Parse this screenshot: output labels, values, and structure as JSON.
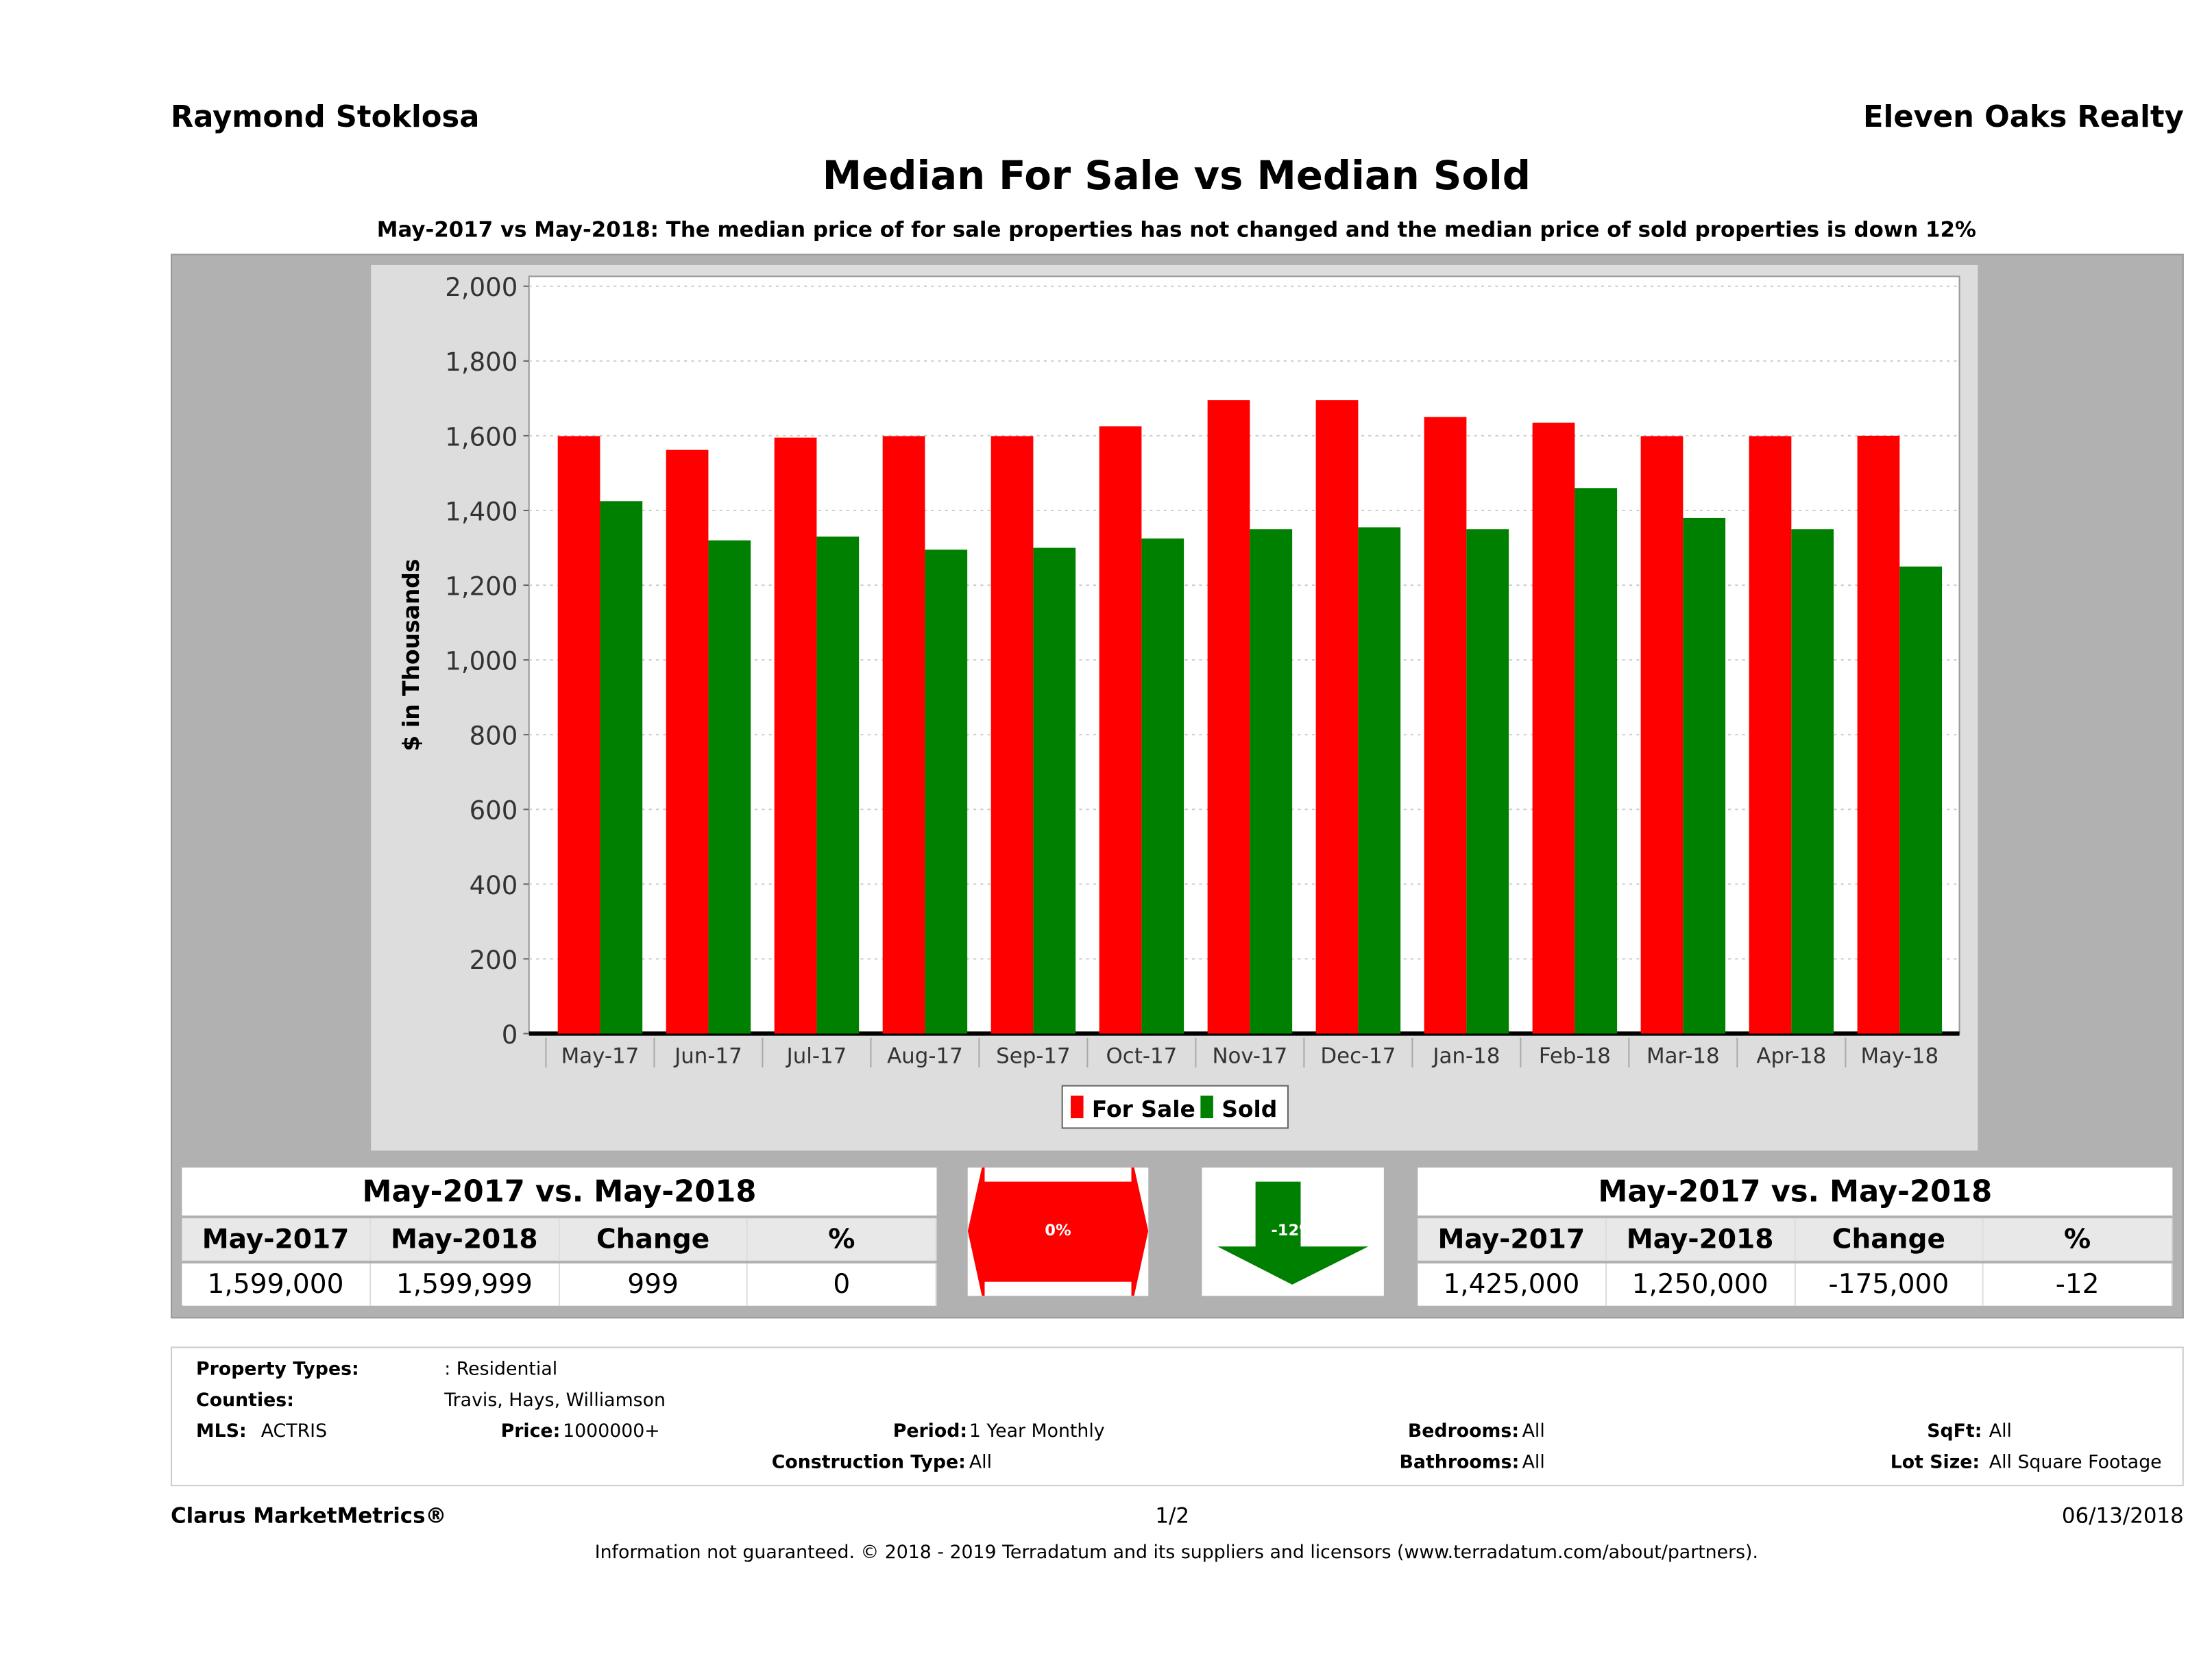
{
  "header": {
    "agent": "Raymond Stoklosa",
    "brokerage": "Eleven Oaks Realty"
  },
  "title": "Median For Sale vs Median Sold",
  "subtitle": "May-2017 vs May-2018: The median price of for sale properties has not changed and the median price of sold properties is down 12%",
  "chart_data": {
    "type": "bar",
    "title": "Median For Sale vs Median Sold",
    "xlabel": "",
    "ylabel": "$ in Thousands",
    "ylim": [
      0,
      2000
    ],
    "yticks": [
      "0",
      "200",
      "400",
      "600",
      "800",
      "1,000",
      "1,200",
      "1,400",
      "1,600",
      "1,800",
      "2,000"
    ],
    "ytick_values": [
      0,
      200,
      400,
      600,
      800,
      1000,
      1200,
      1400,
      1600,
      1800,
      2000
    ],
    "grid": true,
    "legend": "bottom-center",
    "categories": [
      "May-17",
      "Jun-17",
      "Jul-17",
      "Aug-17",
      "Sep-17",
      "Oct-17",
      "Nov-17",
      "Dec-17",
      "Jan-18",
      "Feb-18",
      "Mar-18",
      "Apr-18",
      "May-18"
    ],
    "series": [
      {
        "name": "For Sale",
        "color": "#ff0000",
        "values": [
          1599,
          1562,
          1595,
          1599,
          1599,
          1625,
          1695,
          1695,
          1650,
          1635,
          1599,
          1599,
          1600
        ]
      },
      {
        "name": "Sold",
        "color": "#008000",
        "values": [
          1425,
          1320,
          1330,
          1295,
          1300,
          1325,
          1350,
          1355,
          1350,
          1460,
          1380,
          1350,
          1250
        ]
      }
    ]
  },
  "forsale_table": {
    "caption": "May-2017 vs. May-2018",
    "headers": [
      "May-2017",
      "May-2018",
      "Change",
      "%"
    ],
    "values": [
      "1,599,000",
      "1,599,999",
      "999",
      "0"
    ]
  },
  "forsale_indicator": {
    "label": "0%",
    "color": "#ff0000"
  },
  "sold_indicator": {
    "label": "-12%",
    "color": "#008000"
  },
  "sold_table": {
    "caption": "May-2017 vs. May-2018",
    "headers": [
      "May-2017",
      "May-2018",
      "Change",
      "%"
    ],
    "values": [
      "1,425,000",
      "1,250,000",
      "-175,000",
      "-12"
    ]
  },
  "filters": {
    "property_types_label": "Property Types:",
    "property_types": ": Residential",
    "counties_label": "Counties:",
    "counties": "Travis, Hays, Williamson",
    "mls_label": "MLS:",
    "mls": "ACTRIS",
    "price_label": "Price:",
    "price": "1000000+",
    "period_label": "Period:",
    "period": "1 Year Monthly",
    "construction_label": "Construction Type:",
    "construction": "All",
    "bedrooms_label": "Bedrooms:",
    "bedrooms": "All",
    "bathrooms_label": "Bathrooms:",
    "bathrooms": "All",
    "sqft_label": "SqFt:",
    "sqft": "All",
    "lot_label": "Lot Size:",
    "lot": "All Square Footage"
  },
  "footer": {
    "brand": "Clarus MarketMetrics®",
    "page": "1/2",
    "date": "06/13/2018",
    "disclaimer": "Information not guaranteed. © 2018 - 2019 Terradatum and its suppliers and licensors (www.terradatum.com/about/partners)."
  }
}
